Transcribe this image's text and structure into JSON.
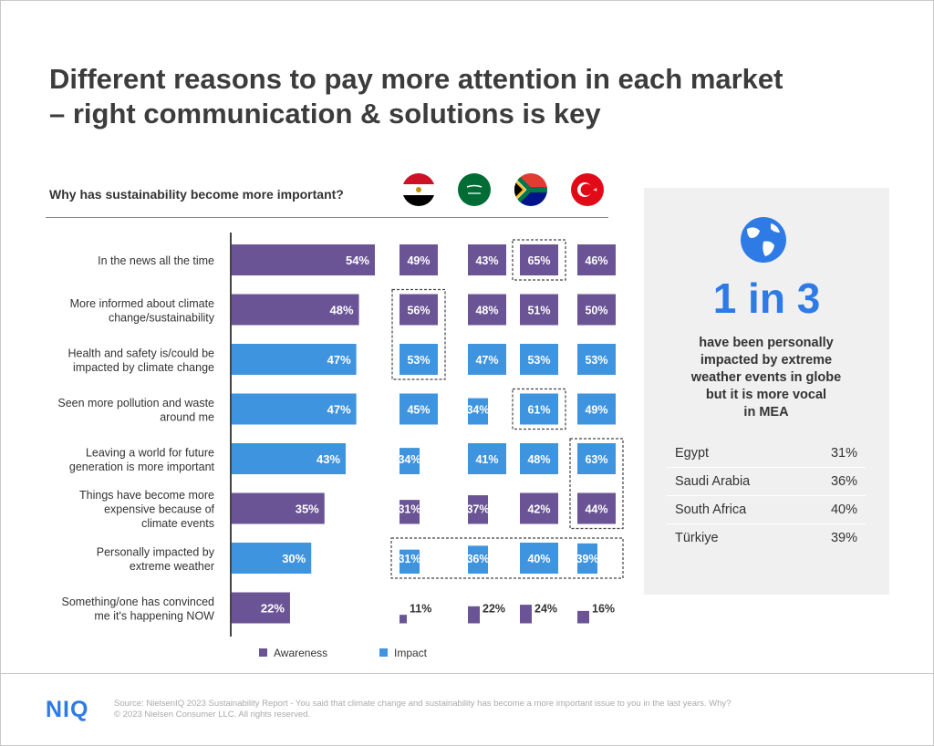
{
  "title": "Different reasons to pay more attention in each market – right communication & solutions is key",
  "question": "Why has sustainability  become more important?",
  "flags": [
    {
      "icon": "egypt-flag-icon",
      "country": "Egypt"
    },
    {
      "icon": "saudi-arabia-flag-icon",
      "country": "Saudi Arabia"
    },
    {
      "icon": "south-africa-flag-icon",
      "country": "South Africa"
    },
    {
      "icon": "turkiye-flag-icon",
      "country": "Türkiye"
    }
  ],
  "chart_data": {
    "type": "bar",
    "categories": [
      "In the news all the time",
      "More informed about climate change/sustainability",
      "Health and safety is/could be impacted by climate change",
      "Seen more pollution and waste around me",
      "Leaving a world for future generation is more important",
      "Things have become more expensive because of climate events",
      "Personally impacted by extreme weather",
      "Something/one has convinced me it's happening NOW"
    ],
    "category_lines": [
      [
        "In the news all the time"
      ],
      [
        "More informed about climate",
        "change/sustainability"
      ],
      [
        "Health and safety is/could be",
        "impacted by climate change"
      ],
      [
        "Seen more pollution and waste",
        "around me"
      ],
      [
        "Leaving a world for future",
        "generation is more important"
      ],
      [
        "Things have become more",
        "expensive because of",
        "climate events"
      ],
      [
        "Personally impacted by",
        "extreme weather"
      ],
      [
        "Something/one has convinced",
        "me it's happening NOW"
      ]
    ],
    "group": [
      "Awareness",
      "Awareness",
      "Impact",
      "Impact",
      "Impact",
      "Awareness",
      "Impact",
      "Awareness"
    ],
    "total": [
      54,
      48,
      47,
      47,
      43,
      35,
      30,
      22
    ],
    "markets": [
      {
        "name": "Egypt",
        "values": [
          49,
          56,
          53,
          45,
          34,
          31,
          31,
          11
        ]
      },
      {
        "name": "Saudi Arabia",
        "values": [
          43,
          48,
          47,
          34,
          41,
          37,
          36,
          22
        ]
      },
      {
        "name": "South Africa",
        "values": [
          65,
          51,
          53,
          61,
          48,
          42,
          40,
          24
        ]
      },
      {
        "name": "Türkiye",
        "values": [
          46,
          50,
          53,
          49,
          63,
          44,
          39,
          16
        ]
      }
    ],
    "legend": [
      {
        "name": "Awareness",
        "color": "#6a5496"
      },
      {
        "name": "Impact",
        "color": "#3f94e0"
      }
    ],
    "highlights": [
      {
        "market": "Egypt",
        "rows": [
          1,
          2
        ]
      },
      {
        "market": "South Africa",
        "rows": [
          0
        ]
      },
      {
        "market": "South Africa",
        "rows": [
          3
        ]
      },
      {
        "market": "Türkiye",
        "rows": [
          4,
          5
        ]
      },
      {
        "market": "all",
        "rows": [
          6
        ]
      }
    ],
    "xlim": [
      0,
      54
    ]
  },
  "callout": {
    "icon": "globe-icon",
    "big": "1 in 3",
    "text": "have been personally impacted by extreme weather events in globe but it is more vocal in MEA",
    "text_lines": [
      "have been personally",
      "impacted by extreme",
      "weather events in globe",
      "but it is more vocal",
      "in MEA"
    ],
    "table": [
      {
        "country": "Egypt",
        "value": "31%"
      },
      {
        "country": "Saudi Arabia",
        "value": "36%"
      },
      {
        "country": "South Africa",
        "value": "40%"
      },
      {
        "country": "Türkiye",
        "value": "39%"
      }
    ]
  },
  "footer": {
    "logo": "NIQ",
    "source": "Source: NielsenIQ 2023 Sustainability Report - You said that climate change and sustainability has become a more  important issue to you in the last years. Why?",
    "copyright": "© 2023 Nielsen Consumer LLC. All rights reserved."
  },
  "colors": {
    "awareness": "#6a5496",
    "impact": "#3f94e0",
    "accent": "#2e7be6",
    "title": "#3c3c3c"
  }
}
